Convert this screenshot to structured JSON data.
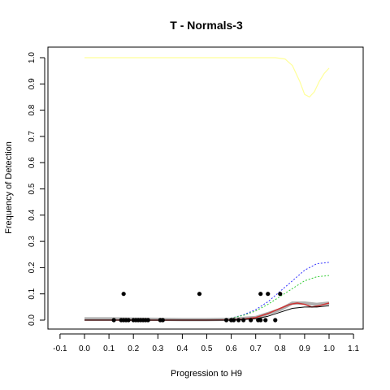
{
  "chart_data": {
    "type": "scatter",
    "title": "T - Normals-3",
    "xlabel": "Progression to H9",
    "ylabel": "Frequency of Detection",
    "xlim": [
      -0.1,
      1.1
    ],
    "ylim": [
      0,
      1.0
    ],
    "x_ticks": [
      "-0.1",
      "0.0",
      "0.1",
      "0.2",
      "0.3",
      "0.4",
      "0.5",
      "0.6",
      "0.7",
      "0.8",
      "0.9",
      "1.0",
      "1.1"
    ],
    "y_ticks": [
      "0.0",
      "0.1",
      "0.2",
      "0.3",
      "0.4",
      "0.5",
      "0.6",
      "0.7",
      "0.8",
      "0.9",
      "1.0"
    ],
    "grid": false,
    "points": [
      {
        "x": 0.12,
        "y": 0.0
      },
      {
        "x": 0.15,
        "y": 0.0
      },
      {
        "x": 0.16,
        "y": 0.0
      },
      {
        "x": 0.17,
        "y": 0.0
      },
      {
        "x": 0.18,
        "y": 0.0
      },
      {
        "x": 0.2,
        "y": 0.0
      },
      {
        "x": 0.21,
        "y": 0.0
      },
      {
        "x": 0.22,
        "y": 0.0
      },
      {
        "x": 0.23,
        "y": 0.0
      },
      {
        "x": 0.24,
        "y": 0.0
      },
      {
        "x": 0.25,
        "y": 0.0
      },
      {
        "x": 0.26,
        "y": 0.0
      },
      {
        "x": 0.31,
        "y": 0.0
      },
      {
        "x": 0.32,
        "y": 0.0
      },
      {
        "x": 0.58,
        "y": 0.0
      },
      {
        "x": 0.6,
        "y": 0.0
      },
      {
        "x": 0.61,
        "y": 0.0
      },
      {
        "x": 0.63,
        "y": 0.0
      },
      {
        "x": 0.65,
        "y": 0.0
      },
      {
        "x": 0.68,
        "y": 0.0
      },
      {
        "x": 0.71,
        "y": 0.0
      },
      {
        "x": 0.72,
        "y": 0.0
      },
      {
        "x": 0.74,
        "y": 0.0
      },
      {
        "x": 0.78,
        "y": 0.0
      },
      {
        "x": 0.16,
        "y": 0.1
      },
      {
        "x": 0.47,
        "y": 0.1
      },
      {
        "x": 0.72,
        "y": 0.1
      },
      {
        "x": 0.75,
        "y": 0.1
      },
      {
        "x": 0.8,
        "y": 0.1
      }
    ],
    "lines": [
      {
        "color": "#ffff99",
        "dash": "solid",
        "width": 1.2,
        "x": [
          0.0,
          0.2,
          0.4,
          0.6,
          0.75,
          0.78,
          0.82,
          0.85,
          0.88,
          0.9,
          0.92,
          0.94,
          0.96,
          0.98,
          1.0
        ],
        "y": [
          1.0,
          1.0,
          1.0,
          1.0,
          1.0,
          1.0,
          0.995,
          0.97,
          0.91,
          0.86,
          0.85,
          0.87,
          0.91,
          0.94,
          0.96
        ]
      },
      {
        "color": "#3333ff",
        "dash": "2,2",
        "width": 1,
        "x": [
          0.0,
          0.4,
          0.55,
          0.6,
          0.65,
          0.7,
          0.75,
          0.8,
          0.85,
          0.9,
          0.95,
          1.0
        ],
        "y": [
          0.0,
          0.0,
          0.003,
          0.008,
          0.02,
          0.04,
          0.07,
          0.11,
          0.15,
          0.19,
          0.215,
          0.22
        ]
      },
      {
        "color": "#33cc33",
        "dash": "2,2",
        "width": 1,
        "x": [
          0.0,
          0.4,
          0.55,
          0.6,
          0.65,
          0.7,
          0.75,
          0.8,
          0.85,
          0.9,
          0.95,
          1.0
        ],
        "y": [
          0.0,
          0.0,
          0.003,
          0.008,
          0.018,
          0.035,
          0.06,
          0.09,
          0.12,
          0.15,
          0.165,
          0.17
        ]
      },
      {
        "color": "#b0b0b0",
        "dash": "solid",
        "width": 4,
        "x": [
          0.0,
          0.1,
          0.2,
          0.3,
          0.4,
          0.5,
          0.6,
          0.7,
          0.8,
          0.85,
          0.9,
          0.95,
          1.0
        ],
        "y": [
          0.005,
          0.005,
          0.004,
          0.003,
          0.002,
          0.002,
          0.003,
          0.01,
          0.04,
          0.065,
          0.065,
          0.06,
          0.065
        ]
      },
      {
        "color": "#cc3333",
        "dash": "solid",
        "width": 1.5,
        "x": [
          0.0,
          0.1,
          0.2,
          0.3,
          0.4,
          0.5,
          0.6,
          0.65,
          0.7,
          0.75,
          0.8,
          0.84,
          0.87,
          0.9,
          0.93,
          0.96,
          1.0
        ],
        "y": [
          0.0,
          0.0,
          0.0,
          0.0,
          0.0,
          0.0,
          0.001,
          0.004,
          0.01,
          0.025,
          0.045,
          0.06,
          0.065,
          0.06,
          0.05,
          0.055,
          0.065
        ]
      },
      {
        "color": "#000000",
        "dash": "solid",
        "width": 1,
        "x": [
          0.0,
          0.2,
          0.4,
          0.6,
          0.7,
          0.75,
          0.8,
          0.85,
          0.9,
          0.95,
          1.0
        ],
        "y": [
          0.0,
          0.0,
          0.0,
          0.0,
          0.005,
          0.015,
          0.03,
          0.045,
          0.05,
          0.05,
          0.055
        ]
      }
    ]
  }
}
